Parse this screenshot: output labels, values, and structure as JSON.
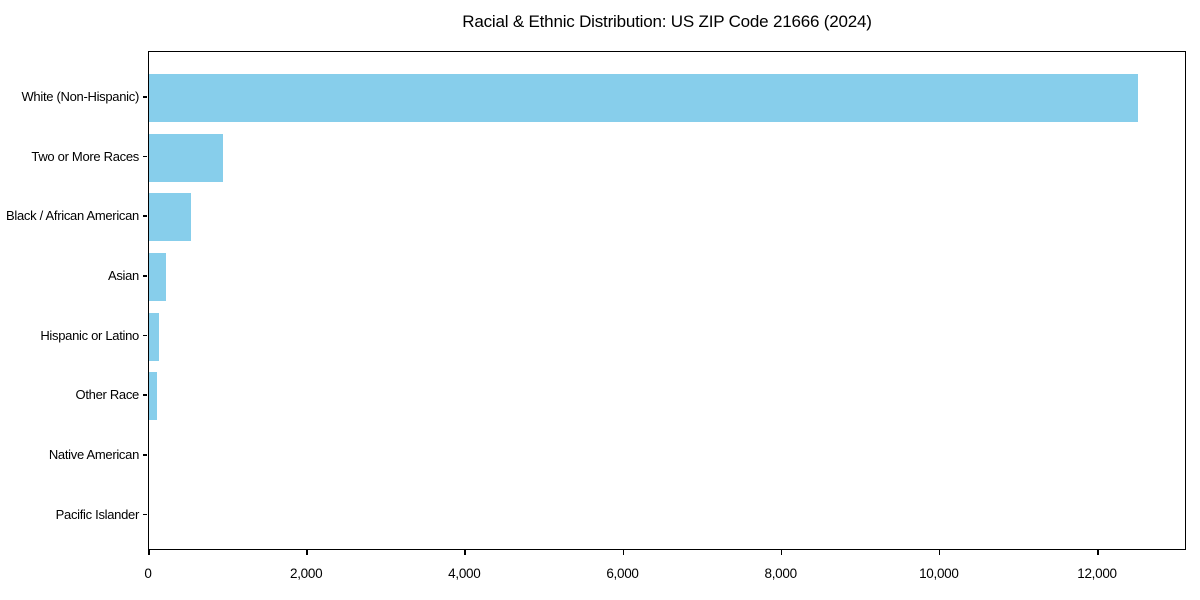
{
  "chart_data": {
    "type": "bar",
    "orientation": "horizontal",
    "title": "Racial & Ethnic Distribution: US ZIP Code 21666 (2024)",
    "categories": [
      "White (Non-Hispanic)",
      "Two or More Races",
      "Black / African American",
      "Asian",
      "Hispanic or Latino",
      "Other Race",
      "Native American",
      "Pacific Islander"
    ],
    "values": [
      12500,
      935,
      525,
      210,
      130,
      95,
      0,
      0
    ],
    "xlabel": "",
    "ylabel": "",
    "xlim": [
      0,
      13125
    ],
    "xticks": [
      0,
      2000,
      4000,
      6000,
      8000,
      10000,
      12000
    ],
    "xtick_labels": [
      "0",
      "2,000",
      "4,000",
      "6,000",
      "8,000",
      "10,000",
      "12,000"
    ],
    "bar_color": "#87CEEB",
    "axis_color": "#000000",
    "background_color": "#ffffff",
    "grid": false,
    "legend": false
  }
}
